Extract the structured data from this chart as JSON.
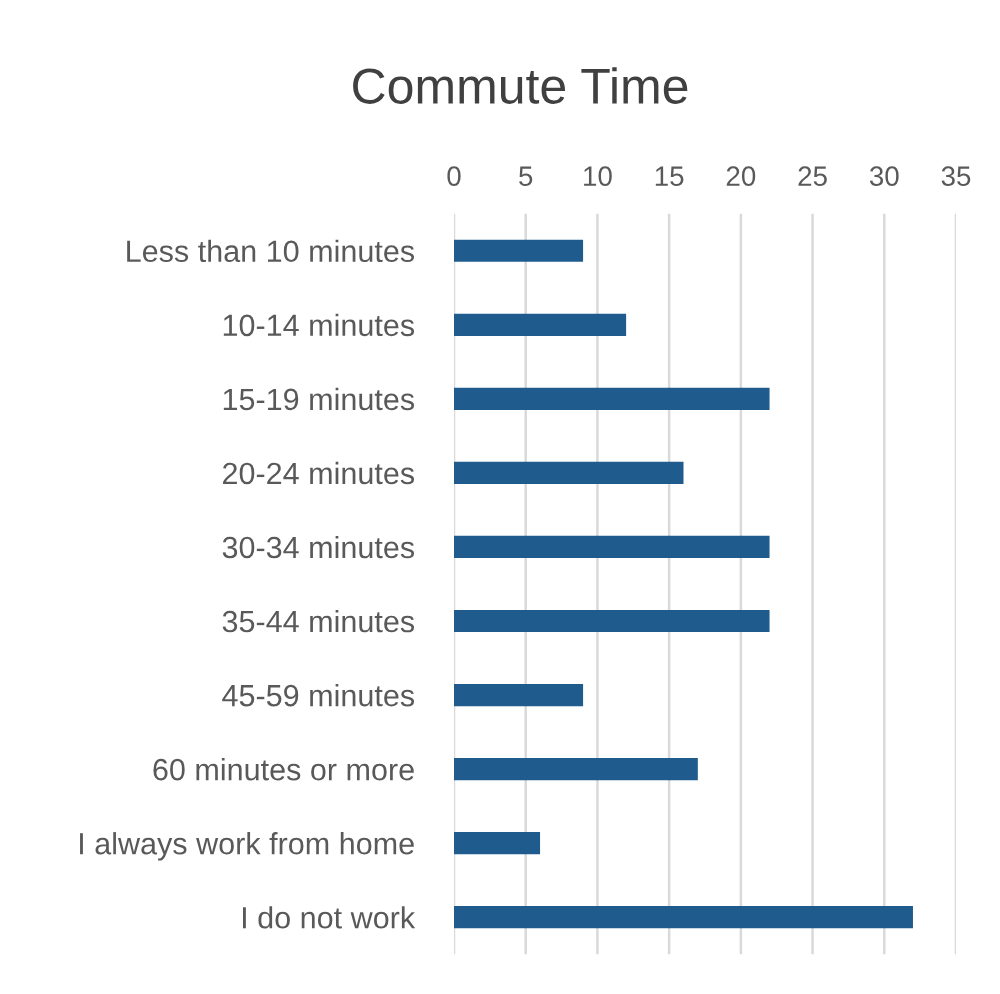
{
  "chart_data": {
    "type": "bar",
    "orientation": "horizontal",
    "title": "Commute Time",
    "categories": [
      "Less than 10 minutes",
      "10-14 minutes",
      "15-19 minutes",
      "20-24 minutes",
      "30-34 minutes",
      "35-44 minutes",
      "45-59 minutes",
      "60 minutes or more",
      "I always work from home",
      "I do not work"
    ],
    "values": [
      9,
      12,
      22,
      16,
      22,
      22,
      9,
      17,
      6,
      32
    ],
    "color": "#1f5b8c",
    "xlim": [
      0,
      35
    ],
    "xticks": [
      0,
      5,
      10,
      15,
      20,
      25,
      30,
      35
    ],
    "grid": "x"
  }
}
